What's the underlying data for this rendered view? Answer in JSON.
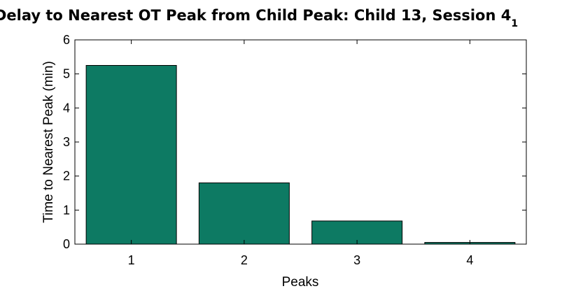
{
  "chart_data": {
    "type": "bar",
    "title": "Delay to Nearest OT Peak from Child Peak: Child 13, Session 4",
    "title_subscript": "1",
    "xlabel": "Peaks",
    "ylabel": "Time to Nearest Peak (min)",
    "categories": [
      "1",
      "2",
      "3",
      "4"
    ],
    "values": [
      5.25,
      1.8,
      0.68,
      0.05
    ],
    "ylim": [
      0,
      6
    ],
    "yticks": [
      0,
      1,
      2,
      3,
      4,
      5,
      6
    ],
    "grid": false,
    "bar_color": "#0d7a63",
    "bar_edge_color": "#000000"
  }
}
